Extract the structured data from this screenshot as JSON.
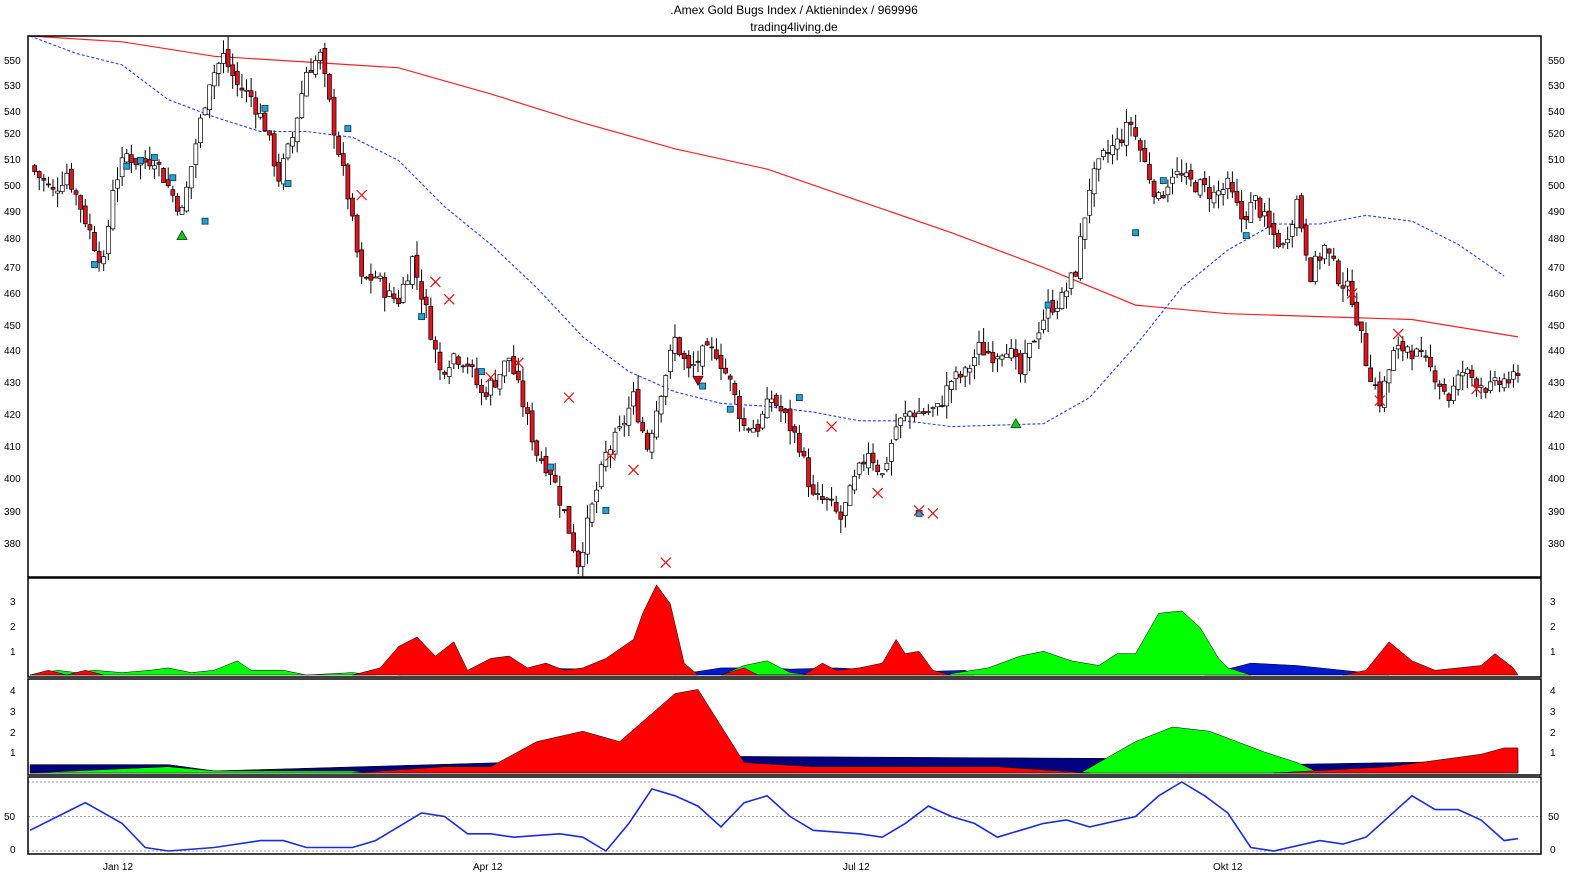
{
  "header": {
    "title": ".Amex Gold Bugs Index / Aktienindex / 969996",
    "subtitle": "trading4living.de"
  },
  "chart_data": [
    {
      "type": "candlestick",
      "panel": "price",
      "ylim": [
        370,
        557
      ],
      "y_ticks": [
        380,
        390,
        400,
        410,
        420,
        430,
        440,
        450,
        460,
        470,
        480,
        490,
        500,
        510,
        520,
        530,
        540,
        550
      ],
      "x_ticks": [
        "Jan 12",
        "Apr 12",
        "Jul 12",
        "Okt 12"
      ],
      "colors": {
        "up": "#ffffff",
        "down": "#e0141e",
        "ma_long": "#ff2020",
        "ma_short": "#2a3cff"
      },
      "close_path": [
        [
          0,
          512
        ],
        [
          5,
          503
        ],
        [
          8,
          510
        ],
        [
          11,
          498
        ],
        [
          14,
          485
        ],
        [
          16,
          478
        ],
        [
          18,
          505
        ],
        [
          21,
          516
        ],
        [
          24,
          513
        ],
        [
          27,
          515
        ],
        [
          30,
          505
        ],
        [
          33,
          496
        ],
        [
          36,
          520
        ],
        [
          39,
          542
        ],
        [
          42,
          550
        ],
        [
          45,
          540
        ],
        [
          48,
          536
        ],
        [
          51,
          526
        ],
        [
          54,
          508
        ],
        [
          57,
          522
        ],
        [
          60,
          545
        ],
        [
          63,
          550
        ],
        [
          66,
          525
        ],
        [
          69,
          502
        ],
        [
          72,
          472
        ],
        [
          75,
          474
        ],
        [
          78,
          467
        ],
        [
          80,
          466
        ],
        [
          83,
          480
        ],
        [
          86,
          462
        ],
        [
          89,
          441
        ],
        [
          92,
          447
        ],
        [
          95,
          444
        ],
        [
          98,
          433
        ],
        [
          101,
          438
        ],
        [
          104,
          446
        ],
        [
          107,
          430
        ],
        [
          110,
          413
        ],
        [
          113,
          407
        ],
        [
          116,
          392
        ],
        [
          119,
          375
        ],
        [
          122,
          394
        ],
        [
          125,
          412
        ],
        [
          128,
          420
        ],
        [
          131,
          432
        ],
        [
          134,
          415
        ],
        [
          137,
          435
        ],
        [
          140,
          452
        ],
        [
          143,
          441
        ],
        [
          146,
          447
        ],
        [
          149,
          448
        ],
        [
          152,
          437
        ],
        [
          155,
          422
        ],
        [
          158,
          422
        ],
        [
          161,
          432
        ],
        [
          164,
          425
        ],
        [
          167,
          416
        ],
        [
          170,
          397
        ],
        [
          173,
          396
        ],
        [
          176,
          390
        ],
        [
          179,
          403
        ],
        [
          182,
          414
        ],
        [
          185,
          405
        ],
        [
          188,
          422
        ],
        [
          191,
          427
        ],
        [
          194,
          427
        ],
        [
          197,
          428
        ],
        [
          200,
          438
        ],
        [
          203,
          440
        ],
        [
          206,
          449
        ],
        [
          209,
          447
        ],
        [
          212,
          450
        ],
        [
          215,
          440
        ],
        [
          218,
          453
        ],
        [
          221,
          463
        ],
        [
          224,
          466
        ],
        [
          227,
          476
        ],
        [
          230,
          505
        ],
        [
          233,
          515
        ],
        [
          236,
          520
        ],
        [
          239,
          527
        ],
        [
          242,
          513
        ],
        [
          245,
          500
        ],
        [
          248,
          510
        ],
        [
          251,
          507
        ],
        [
          254,
          505
        ],
        [
          257,
          502
        ],
        [
          260,
          505
        ],
        [
          263,
          494
        ],
        [
          266,
          500
        ],
        [
          269,
          490
        ],
        [
          272,
          484
        ],
        [
          275,
          500
        ],
        [
          278,
          475
        ],
        [
          281,
          484
        ],
        [
          284,
          474
        ],
        [
          287,
          467
        ],
        [
          290,
          445
        ],
        [
          293,
          431
        ],
        [
          296,
          447
        ],
        [
          299,
          450
        ],
        [
          302,
          445
        ],
        [
          305,
          440
        ],
        [
          308,
          432
        ],
        [
          311,
          441
        ],
        [
          314,
          438
        ],
        [
          317,
          435
        ],
        [
          320,
          438
        ],
        [
          323,
          438
        ]
      ],
      "ma_long": [
        [
          0,
          557
        ],
        [
          20,
          555
        ],
        [
          40,
          550
        ],
        [
          60,
          548
        ],
        [
          80,
          546
        ],
        [
          100,
          537
        ],
        [
          120,
          527
        ],
        [
          140,
          518
        ],
        [
          160,
          511
        ],
        [
          180,
          500
        ],
        [
          200,
          489
        ],
        [
          220,
          477
        ],
        [
          240,
          464
        ],
        [
          260,
          461
        ],
        [
          280,
          460
        ],
        [
          300,
          459
        ],
        [
          323,
          453
        ]
      ],
      "ma_short": [
        [
          0,
          557
        ],
        [
          10,
          551
        ],
        [
          20,
          547
        ],
        [
          30,
          535
        ],
        [
          40,
          529
        ],
        [
          50,
          524
        ],
        [
          60,
          524
        ],
        [
          70,
          522
        ],
        [
          80,
          514
        ],
        [
          90,
          498
        ],
        [
          100,
          485
        ],
        [
          110,
          470
        ],
        [
          120,
          453
        ],
        [
          130,
          441
        ],
        [
          140,
          434
        ],
        [
          150,
          430
        ],
        [
          160,
          429
        ],
        [
          170,
          427
        ],
        [
          180,
          424
        ],
        [
          190,
          424
        ],
        [
          200,
          422
        ],
        [
          220,
          423
        ],
        [
          230,
          432
        ],
        [
          240,
          450
        ],
        [
          250,
          470
        ],
        [
          260,
          483
        ],
        [
          270,
          492
        ],
        [
          280,
          492
        ],
        [
          290,
          495
        ],
        [
          300,
          493
        ],
        [
          310,
          485
        ],
        [
          320,
          474
        ]
      ],
      "buy_signals": [
        [
          33,
          488
        ],
        [
          214,
          423
        ]
      ],
      "sell_signals": [
        [
          145,
          438
        ]
      ],
      "markers_square": [
        [
          14,
          478
        ],
        [
          21,
          512
        ],
        [
          24,
          514
        ],
        [
          27,
          515
        ],
        [
          31,
          508
        ],
        [
          38,
          493
        ],
        [
          51,
          532
        ],
        [
          56,
          506
        ],
        [
          69,
          525
        ],
        [
          85,
          460
        ],
        [
          98,
          441
        ],
        [
          113,
          408
        ],
        [
          125,
          393
        ],
        [
          146,
          436
        ],
        [
          152,
          428
        ],
        [
          167,
          432
        ],
        [
          193,
          392
        ],
        [
          221,
          464
        ],
        [
          240,
          489
        ],
        [
          246,
          507
        ],
        [
          264,
          488
        ]
      ],
      "markers_x": [
        [
          72,
          502
        ],
        [
          88,
          472
        ],
        [
          91,
          466
        ],
        [
          100,
          439
        ],
        [
          106,
          444
        ],
        [
          117,
          432
        ],
        [
          126,
          412
        ],
        [
          131,
          407
        ],
        [
          138,
          375
        ],
        [
          174,
          422
        ],
        [
          184,
          399
        ],
        [
          193,
          393
        ],
        [
          196,
          392
        ],
        [
          287,
          468
        ],
        [
          293,
          431
        ],
        [
          297,
          454
        ],
        [
          314,
          435
        ]
      ]
    },
    {
      "type": "area",
      "panel": "indicator-1",
      "ylim": [
        0,
        4
      ],
      "y_ticks": [
        1,
        2,
        3
      ],
      "colors": [
        "#ff0000",
        "#00ff00",
        "#0018d0"
      ]
    },
    {
      "type": "area",
      "panel": "indicator-2",
      "ylim": [
        0,
        4.4
      ],
      "y_ticks": [
        1,
        2,
        3,
        4
      ],
      "colors": [
        "#ff0000",
        "#00ff00",
        "#000080"
      ]
    },
    {
      "type": "line",
      "panel": "oscillator",
      "ylim": [
        0,
        100
      ],
      "y_ticks": [
        0,
        50
      ],
      "grid_levels": [
        0,
        50,
        100
      ],
      "color": "#1a2ce0"
    }
  ],
  "ticks": {
    "price": [
      "380",
      "390",
      "400",
      "410",
      "420",
      "430",
      "440",
      "450",
      "460",
      "470",
      "480",
      "490",
      "500",
      "510",
      "520",
      "530",
      "540",
      "550"
    ],
    "ind1": [
      "1",
      "2",
      "3"
    ],
    "ind2": [
      "1",
      "2",
      "3",
      "4"
    ],
    "osc": [
      "0",
      "50"
    ],
    "dates": [
      "Jan 12",
      "Apr 12",
      "Jul 12",
      "Okt 12"
    ]
  }
}
